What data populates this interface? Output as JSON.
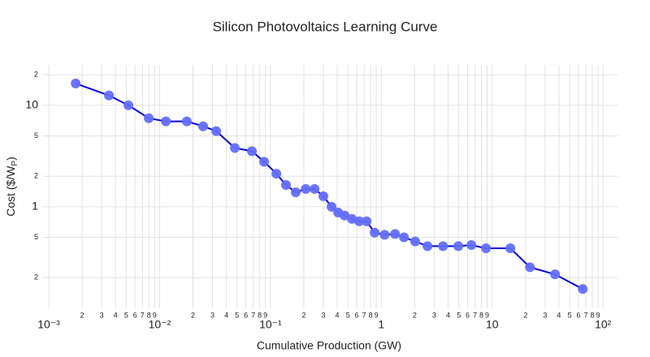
{
  "chart_data": {
    "type": "line",
    "title": "Silicon Photovoltaics Learning Curve",
    "x_label": "Cumulative Production (GW)",
    "y_label": {
      "main": "Cost ($/W",
      "sub": "P",
      "end": ")"
    },
    "log_x": true,
    "log_y": true,
    "grid": true,
    "xlim": [
      0.001,
      135
    ],
    "ylim": [
      0.1,
      25
    ],
    "xticks": [
      {
        "value": 0.001,
        "label": "10⁻³"
      },
      {
        "value": 0.002,
        "label": "2"
      },
      {
        "value": 0.003,
        "label": "3"
      },
      {
        "value": 0.004,
        "label": "4"
      },
      {
        "value": 0.005,
        "label": "5"
      },
      {
        "value": 0.006,
        "label": "6"
      },
      {
        "value": 0.007,
        "label": "7"
      },
      {
        "value": 0.008,
        "label": "8"
      },
      {
        "value": 0.009,
        "label": "9"
      },
      {
        "value": 0.01,
        "label": "10⁻²"
      },
      {
        "value": 0.02,
        "label": "2"
      },
      {
        "value": 0.03,
        "label": "3"
      },
      {
        "value": 0.04,
        "label": "4"
      },
      {
        "value": 0.05,
        "label": "5"
      },
      {
        "value": 0.06,
        "label": "6"
      },
      {
        "value": 0.07,
        "label": "7"
      },
      {
        "value": 0.08,
        "label": "8"
      },
      {
        "value": 0.09,
        "label": "9"
      },
      {
        "value": 0.1,
        "label": "10⁻¹"
      },
      {
        "value": 0.2,
        "label": "2"
      },
      {
        "value": 0.3,
        "label": "3"
      },
      {
        "value": 0.4,
        "label": "4"
      },
      {
        "value": 0.5,
        "label": "5"
      },
      {
        "value": 0.6,
        "label": "6"
      },
      {
        "value": 0.7,
        "label": "7"
      },
      {
        "value": 0.8,
        "label": "8"
      },
      {
        "value": 0.9,
        "label": "9"
      },
      1,
      {
        "value": 2,
        "label": "2"
      },
      {
        "value": 3,
        "label": "3"
      },
      {
        "value": 4,
        "label": "4"
      },
      {
        "value": 5,
        "label": "5"
      },
      {
        "value": 6,
        "label": "6"
      },
      {
        "value": 7,
        "label": "7"
      },
      {
        "value": 8,
        "label": "8"
      },
      {
        "value": 9,
        "label": "9"
      },
      10,
      {
        "value": 20,
        "label": "2"
      },
      {
        "value": 30,
        "label": "3"
      },
      {
        "value": 40,
        "label": "4"
      },
      {
        "value": 50,
        "label": "5"
      },
      {
        "value": 60,
        "label": "6"
      },
      {
        "value": 70,
        "label": "7"
      },
      {
        "value": 80,
        "label": "8"
      },
      {
        "value": 90,
        "label": "9"
      },
      {
        "value": 100,
        "label": "10²"
      }
    ],
    "yticks": [
      {
        "value": 0.2,
        "label": "2"
      },
      {
        "value": 0.5,
        "label": "5"
      },
      1,
      {
        "value": 2,
        "label": "2"
      },
      {
        "value": 5,
        "label": "5"
      },
      10,
      {
        "value": 20,
        "label": "2"
      }
    ],
    "x": [
      0.00175,
      0.00349,
      0.00523,
      0.00798,
      0.0114,
      0.0176,
      0.0247,
      0.0324,
      0.0477,
      0.068,
      0.0877,
      0.113,
      0.138,
      0.169,
      0.208,
      0.25,
      0.3,
      0.356,
      0.407,
      0.467,
      0.543,
      0.632,
      0.736,
      0.871,
      1.07,
      1.33,
      1.6,
      2.02,
      2.61,
      3.6,
      4.95,
      6.49,
      8.8,
      14.6,
      21.9,
      36.9,
      65.6
    ],
    "series": [
      {
        "color": "#0000dd",
        "marker_color": "#636efa",
        "values": [
          16.4,
          12.5,
          10,
          7.46,
          6.94,
          6.94,
          6.22,
          5.57,
          3.8,
          3.53,
          2.78,
          2.12,
          1.64,
          1.39,
          1.5,
          1.5,
          1.27,
          1.0,
          0.88,
          0.82,
          0.76,
          0.72,
          0.72,
          0.557,
          0.53,
          0.54,
          0.5,
          0.456,
          0.41,
          0.41,
          0.41,
          0.42,
          0.39,
          0.39,
          0.254,
          0.216,
          0.155
        ]
      }
    ]
  }
}
